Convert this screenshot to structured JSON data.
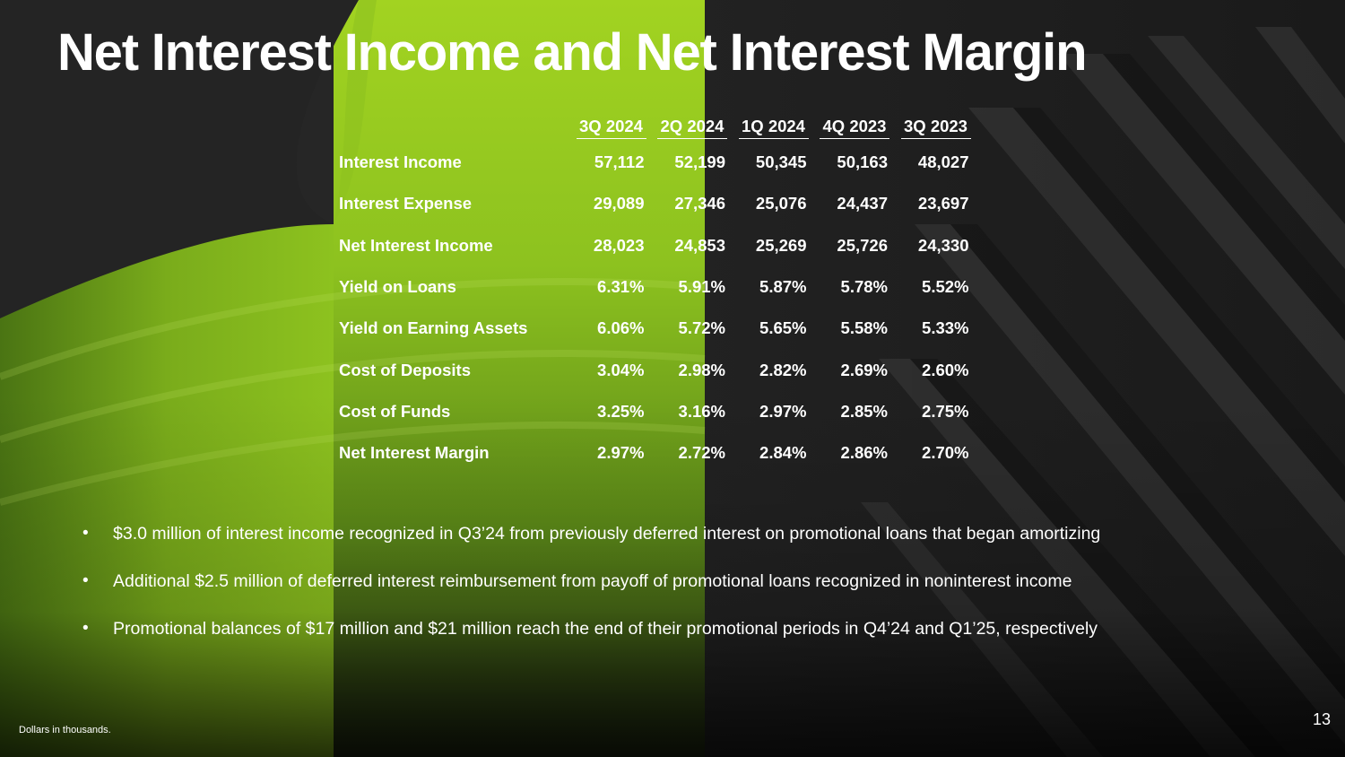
{
  "slide": {
    "title": "Net Interest Income and Net Interest Margin",
    "page_number": "13",
    "footnote": "Dollars in thousands."
  },
  "colors": {
    "accent_green": "#8dc21f",
    "background_dark": "#1c1c1c",
    "text": "#ffffff"
  },
  "table": {
    "columns": [
      "3Q 2024",
      "2Q 2024",
      "1Q 2024",
      "4Q 2023",
      "3Q 2023"
    ],
    "rows": [
      {
        "label": "Interest Income",
        "values": [
          "57,112",
          "52,199",
          "50,345",
          "50,163",
          "48,027"
        ]
      },
      {
        "label": "Interest Expense",
        "values": [
          "29,089",
          "27,346",
          "25,076",
          "24,437",
          "23,697"
        ]
      },
      {
        "label": "Net Interest Income",
        "values": [
          "28,023",
          "24,853",
          "25,269",
          "25,726",
          "24,330"
        ]
      },
      {
        "label": "Yield on Loans",
        "values": [
          "6.31%",
          "5.91%",
          "5.87%",
          "5.78%",
          "5.52%"
        ]
      },
      {
        "label": "Yield on Earning Assets",
        "values": [
          "6.06%",
          "5.72%",
          "5.65%",
          "5.58%",
          "5.33%"
        ]
      },
      {
        "label": "Cost of Deposits",
        "values": [
          "3.04%",
          "2.98%",
          "2.82%",
          "2.69%",
          "2.60%"
        ]
      },
      {
        "label": "Cost of Funds",
        "values": [
          "3.25%",
          "3.16%",
          "2.97%",
          "2.85%",
          "2.75%"
        ]
      },
      {
        "label": "Net Interest Margin",
        "values": [
          "2.97%",
          "2.72%",
          "2.84%",
          "2.86%",
          "2.70%"
        ]
      }
    ]
  },
  "bullets": {
    "marker": "•",
    "items": [
      "$3.0 million of interest income recognized in Q3’24 from previously deferred interest on promotional loans that began amortizing",
      "Additional $2.5 million of deferred interest reimbursement from payoff of promotional loans recognized in noninterest income",
      "Promotional balances of $17 million and $21 million reach the end of their promotional periods in Q4’24 and Q1’25, respectively"
    ]
  }
}
